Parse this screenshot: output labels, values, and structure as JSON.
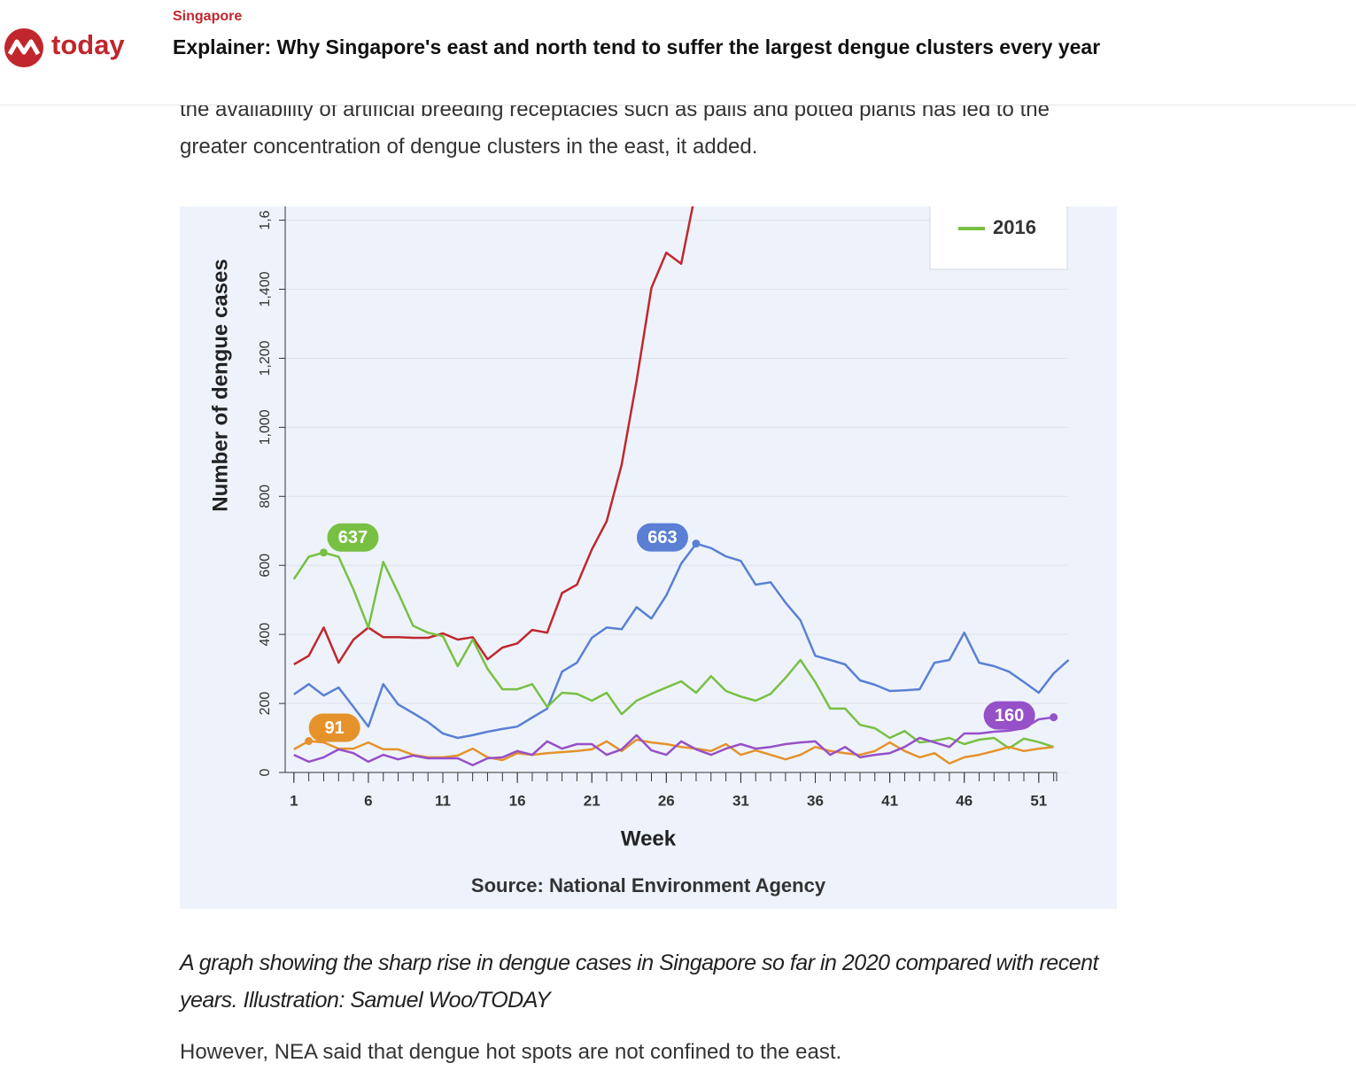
{
  "header": {
    "logo": "today",
    "section": "Singapore",
    "title": "Explainer: Why Singapore's east and north tend to suffer the largest dengue clusters every year"
  },
  "article": {
    "paragraphs": [
      "the availability of artificial breeding receptacles such as pails and potted plants has led to the greater concentration of dengue clusters in the east, it added.",
      "However, NEA said that dengue hot spots are not confined to the east."
    ],
    "caption": "A graph showing the sharp rise in dengue cases in Singapore so far in 2020 compared with recent years. Illustration: Samuel Woo/TODAY"
  },
  "chart_data": {
    "type": "line",
    "y_label": "Number of dengue cases",
    "x_label": "Week",
    "source": "Source: National Environment Agency",
    "x": [
      1,
      2,
      3,
      4,
      5,
      6,
      7,
      8,
      9,
      10,
      11,
      12,
      13,
      14,
      15,
      16,
      17,
      18,
      19,
      20,
      21,
      22,
      23,
      24,
      25,
      26,
      27,
      28,
      29,
      30,
      31,
      32,
      33,
      34,
      35,
      36,
      37,
      38,
      39,
      40,
      41,
      42,
      43,
      44,
      45,
      46,
      47,
      48,
      49,
      50,
      51,
      52,
      53
    ],
    "xlim": [
      0,
      52.2
    ],
    "xticks": [
      1,
      6,
      11,
      16,
      21,
      26,
      31,
      36,
      41,
      46,
      51
    ],
    "ylim": [
      0,
      1640
    ],
    "yticks": [
      0,
      200,
      400,
      600,
      800,
      {
        "value": 1000,
        "label": "1,000"
      },
      {
        "value": 1200,
        "label": "1,200"
      },
      {
        "value": 1400,
        "label": "1,400"
      },
      {
        "value": 1600,
        "label": "1,6"
      }
    ],
    "grid": true,
    "legend": "upper right",
    "series": [
      {
        "color": "#c0272d",
        "values": [
          313,
          338,
          420,
          318,
          385,
          420,
          392,
          392,
          390,
          390,
          403,
          385,
          392,
          328,
          362,
          374,
          413,
          405,
          520,
          544,
          646,
          728,
          892,
          1134,
          1404,
          1506,
          1474,
          1690,
          null,
          null,
          null,
          null,
          null,
          null,
          null,
          null,
          null,
          null,
          null,
          null,
          null,
          null,
          null,
          null,
          null,
          null,
          null,
          null,
          null,
          null,
          null,
          null,
          null
        ]
      },
      {
        "color": "#5a7fd4",
        "values": [
          226,
          256,
          223,
          246,
          190,
          133,
          256,
          197,
          172,
          146,
          113,
          100,
          108,
          118,
          126,
          133,
          159,
          185,
          292,
          318,
          390,
          420,
          415,
          479,
          446,
          513,
          605,
          663,
          650,
          626,
          613,
          544,
          551,
          492,
          441,
          338,
          326,
          313,
          267,
          254,
          236,
          238,
          241,
          318,
          326,
          405,
          318,
          308,
          292,
          262,
          231,
          287,
          326
        ],
        "value_labels": [
          null,
          null,
          null,
          null,
          null,
          null,
          null,
          null,
          null,
          null,
          null,
          null,
          null,
          null,
          null,
          null,
          null,
          null,
          null,
          null,
          null,
          null,
          null,
          null,
          null,
          null,
          null,
          "663",
          null,
          null,
          null,
          null,
          null,
          null,
          null,
          null,
          null,
          null,
          null,
          null,
          null,
          null,
          null,
          null,
          null,
          null,
          null,
          null,
          null,
          null,
          null,
          null,
          null
        ]
      },
      {
        "name": "2016",
        "color": "#78c043",
        "values": [
          560,
          625,
          637,
          625,
          530,
          420,
          610,
          520,
          425,
          405,
          395,
          308,
          385,
          300,
          241,
          241,
          256,
          190,
          231,
          228,
          208,
          231,
          169,
          208,
          228,
          246,
          264,
          231,
          279,
          236,
          220,
          208,
          228,
          274,
          326,
          262,
          185,
          185,
          138,
          128,
          100,
          120,
          87,
          92,
          100,
          82,
          95,
          100,
          70,
          98,
          88,
          74,
          null
        ],
        "value_labels": [
          null,
          null,
          "637",
          null,
          null,
          null,
          null,
          null,
          null,
          null,
          null,
          null,
          null,
          null,
          null,
          null,
          null,
          null,
          null,
          null,
          null,
          null,
          null,
          null,
          null,
          null,
          null,
          null,
          null,
          null,
          null,
          null,
          null,
          null,
          null,
          null,
          null,
          null,
          null,
          null,
          null,
          null,
          null,
          null,
          null,
          null,
          null,
          null,
          null,
          null,
          null,
          null,
          null
        ]
      },
      {
        "color": "#e5922b",
        "values": [
          67,
          91,
          87,
          69,
          69,
          87,
          67,
          67,
          51,
          44,
          44,
          49,
          69,
          44,
          36,
          56,
          51,
          56,
          59,
          62,
          67,
          90,
          62,
          95,
          87,
          82,
          74,
          69,
          62,
          82,
          51,
          64,
          51,
          38,
          51,
          74,
          62,
          56,
          51,
          62,
          87,
          62,
          44,
          56,
          26,
          44,
          51,
          62,
          74,
          62,
          69,
          74,
          null
        ],
        "value_labels": [
          null,
          "91",
          null,
          null,
          null,
          null,
          null,
          null,
          null,
          null,
          null,
          null,
          null,
          null,
          null,
          null,
          null,
          null,
          null,
          null,
          null,
          null,
          null,
          null,
          null,
          null,
          null,
          null,
          null,
          null,
          null,
          null,
          null,
          null,
          null,
          null,
          null,
          null,
          null,
          null,
          null,
          null,
          null,
          null,
          null,
          null,
          null,
          null,
          null,
          null,
          null,
          null,
          null
        ]
      },
      {
        "color": "#9650c8",
        "values": [
          51,
          31,
          44,
          67,
          56,
          31,
          51,
          38,
          49,
          41,
          41,
          41,
          21,
          41,
          44,
          62,
          51,
          90,
          69,
          82,
          82,
          51,
          67,
          108,
          64,
          51,
          90,
          67,
          51,
          69,
          82,
          69,
          74,
          82,
          87,
          90,
          51,
          74,
          44,
          51,
          56,
          74,
          100,
          87,
          74,
          113,
          113,
          118,
          121,
          128,
          154,
          160,
          null
        ],
        "value_labels": [
          null,
          null,
          null,
          null,
          null,
          null,
          null,
          null,
          null,
          null,
          null,
          null,
          null,
          null,
          null,
          null,
          null,
          null,
          null,
          null,
          null,
          null,
          null,
          null,
          null,
          null,
          null,
          null,
          null,
          null,
          null,
          null,
          null,
          null,
          null,
          null,
          null,
          null,
          null,
          null,
          null,
          null,
          null,
          null,
          null,
          null,
          null,
          null,
          null,
          null,
          null,
          "160",
          null
        ]
      }
    ]
  }
}
